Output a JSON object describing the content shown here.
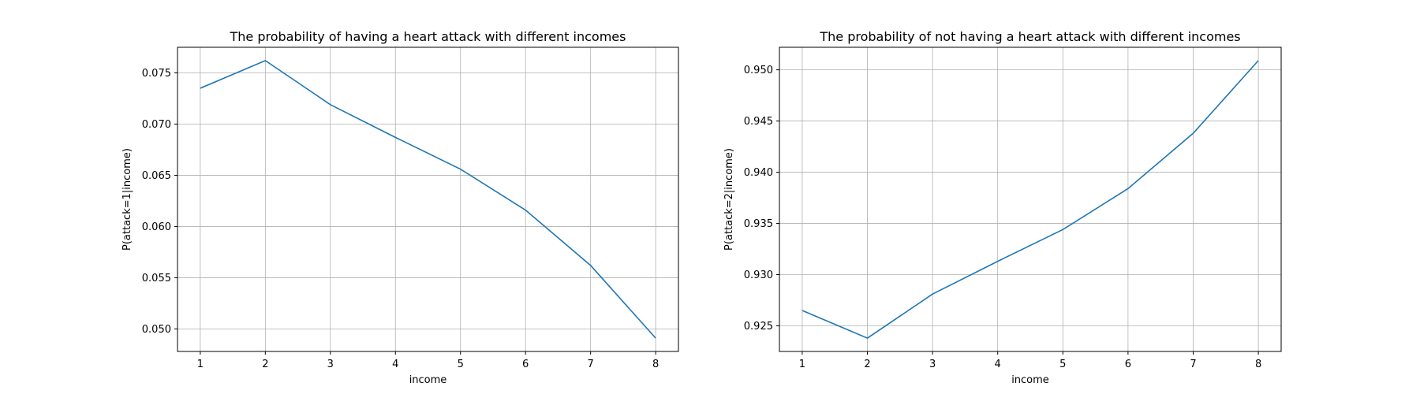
{
  "chart_data": [
    {
      "type": "line",
      "title": "The probability of having a heart attack with different incomes",
      "xlabel": "income",
      "ylabel": "P(attack=1|income)",
      "x": [
        1,
        2,
        3,
        4,
        5,
        6,
        7,
        8
      ],
      "series": [
        {
          "values": [
            0.0735,
            0.0762,
            0.0719,
            0.0687,
            0.0656,
            0.0616,
            0.0562,
            0.0491
          ]
        }
      ],
      "xlim": [
        0.65,
        8.35
      ],
      "ylim": [
        0.0478,
        0.0775
      ],
      "xticks": [
        1,
        2,
        3,
        4,
        5,
        6,
        7,
        8
      ],
      "xtick_labels": [
        "1",
        "2",
        "3",
        "4",
        "5",
        "6",
        "7",
        "8"
      ],
      "yticks": [
        0.05,
        0.055,
        0.06,
        0.065,
        0.07,
        0.075
      ],
      "ytick_labels": [
        "0.050",
        "0.055",
        "0.060",
        "0.065",
        "0.070",
        "0.075"
      ],
      "grid": true,
      "color": "#1f77b4"
    },
    {
      "type": "line",
      "title": "The probability of not having a heart attack with different incomes",
      "xlabel": "income",
      "ylabel": "P(attack=2|income)",
      "x": [
        1,
        2,
        3,
        4,
        5,
        6,
        7,
        8
      ],
      "series": [
        {
          "values": [
            0.9265,
            0.9238,
            0.9281,
            0.9313,
            0.9344,
            0.9384,
            0.9438,
            0.9509
          ]
        }
      ],
      "xlim": [
        0.65,
        8.35
      ],
      "ylim": [
        0.9225,
        0.9522
      ],
      "xticks": [
        1,
        2,
        3,
        4,
        5,
        6,
        7,
        8
      ],
      "xtick_labels": [
        "1",
        "2",
        "3",
        "4",
        "5",
        "6",
        "7",
        "8"
      ],
      "yticks": [
        0.925,
        0.93,
        0.935,
        0.94,
        0.945,
        0.95
      ],
      "ytick_labels": [
        "0.925",
        "0.930",
        "0.935",
        "0.940",
        "0.945",
        "0.950"
      ],
      "grid": true,
      "color": "#1f77b4"
    }
  ]
}
